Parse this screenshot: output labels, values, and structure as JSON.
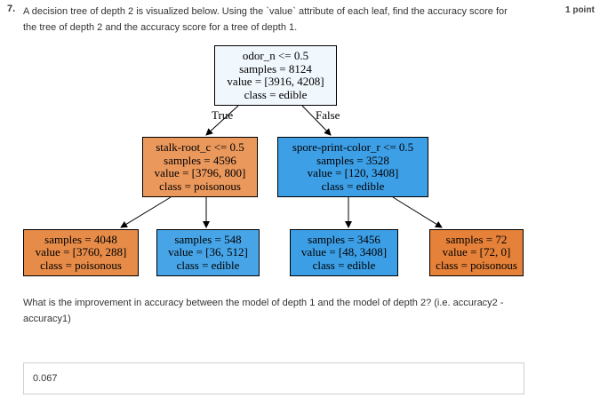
{
  "question": {
    "number": "7.",
    "text": "A decision tree of depth 2 is visualized below. Using the `value` attribute of each leaf, find the accuracy score for the tree of depth 2 and the accuracy score for a tree of depth 1.",
    "points": "1 point"
  },
  "tree": {
    "root": {
      "line1": "odor_n <= 0.5",
      "line2": "samples = 8124",
      "line3": "value = [3916, 4208]",
      "line4": "class = edible",
      "color": "#f0f7fd"
    },
    "edge_true": "True",
    "edge_false": "False",
    "left": {
      "line1": "stalk-root_c <= 0.5",
      "line2": "samples = 4596",
      "line3": "value = [3796, 800]",
      "line4": "class = poisonous",
      "color": "#eb985c"
    },
    "right": {
      "line1": "spore-print-color_r <= 0.5",
      "line2": "samples = 3528",
      "line3": "value = [120, 3408]",
      "line4": "class = edible",
      "color": "#3d9fe6"
    },
    "leaf1": {
      "line1": "samples = 4048",
      "line2": "value = [3760, 288]",
      "line3": "class = poisonous",
      "color": "#e78b48"
    },
    "leaf2": {
      "line1": "samples = 548",
      "line2": "value = [36, 512]",
      "line3": "class = edible",
      "color": "#47a4e7"
    },
    "leaf3": {
      "line1": "samples = 3456",
      "line2": "value = [48, 3408]",
      "line3": "class = edible",
      "color": "#3c9ee5"
    },
    "leaf4": {
      "line1": "samples = 72",
      "line2": "value = [72, 0]",
      "line3": "class = poisonous",
      "color": "#e58139"
    }
  },
  "followup": "What is the improvement in accuracy between the model of depth 1 and the model of depth 2? (i.e. accuracy2 - accuracy1)",
  "answer": {
    "value": "0.067"
  }
}
